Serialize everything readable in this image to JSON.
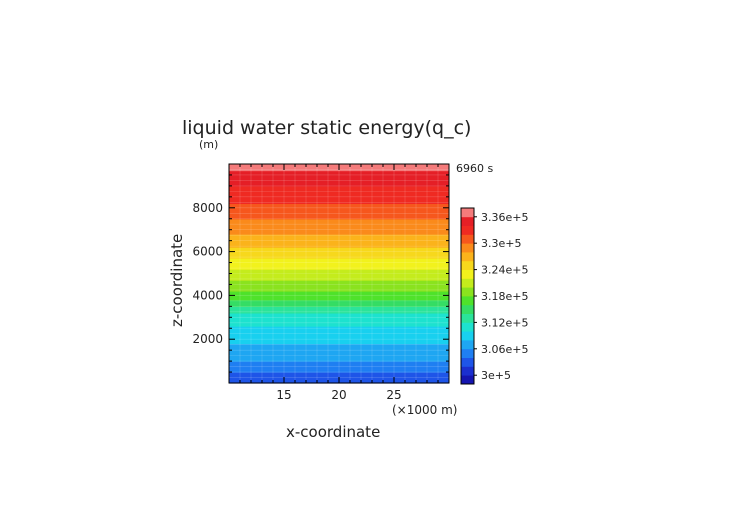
{
  "chart_data": {
    "type": "heatmap",
    "title": "liquid water static energy(q_c)",
    "time_label": "6960 s",
    "xlabel": "x-coordinate",
    "x_unit": "(×1000 m)",
    "ylabel": "z-coordinate",
    "y_unit": "(m)",
    "xlim": [
      10,
      30
    ],
    "ylim": [
      0,
      10000
    ],
    "x_ticks": [
      15,
      20,
      25
    ],
    "y_ticks": [
      2000,
      4000,
      6000,
      8000
    ],
    "grid": true,
    "legend": "right",
    "colorbar": {
      "min": 298000,
      "max": 338000,
      "step": 2000,
      "tick_values": [
        300000,
        306000,
        312000,
        318000,
        324000,
        330000,
        336000
      ],
      "tick_labels": [
        "3e+5",
        "3.06e+5",
        "3.12e+5",
        "3.18e+5",
        "3.24e+5",
        "3.3e+5",
        "3.36e+5"
      ],
      "colors": [
        "#8e24aa",
        "#1515b0",
        "#1b2fcf",
        "#1e55e8",
        "#1f7ff2",
        "#1ea6f2",
        "#18d0ef",
        "#1de2cf",
        "#2be39a",
        "#35dd64",
        "#4fe22b",
        "#8ae31e",
        "#c4ec1c",
        "#f2f21c",
        "#f7d81c",
        "#fbb31b",
        "#fa8a1b",
        "#f6571d",
        "#ef2a22",
        "#e51f26",
        "#f47b7b"
      ]
    },
    "profile": {
      "z": [
        0,
        1000,
        2000,
        3000,
        4000,
        5000,
        6000,
        7000,
        8000,
        9000,
        10000
      ],
      "value": [
        302000,
        306000,
        308500,
        311000,
        317000,
        321000,
        325500,
        328500,
        331500,
        334000,
        337000
      ]
    }
  }
}
